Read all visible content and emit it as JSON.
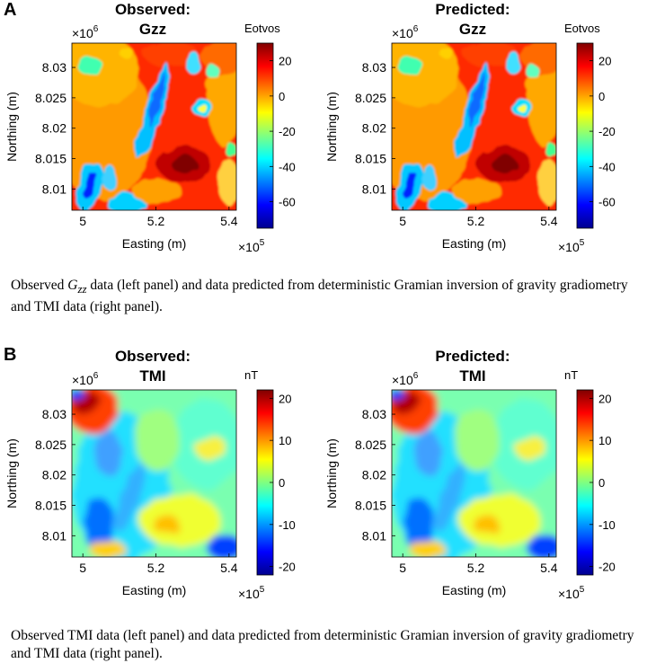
{
  "figure_a": {
    "letter": "A",
    "left_title": [
      "Observed:",
      "Gzz"
    ],
    "right_title": [
      "Predicted:",
      "Gzz"
    ],
    "colorbar_label": "Eotvos",
    "colorbar_ticks": [
      "20",
      "0",
      "-20",
      "-40",
      "-60"
    ],
    "caption_pre": "Observed ",
    "caption_symbol": "G",
    "caption_sub": "zz",
    "caption_post": " data (left panel) and data predicted from deterministic Gramian inversion of gravity gradiometry and TMI data (right panel)."
  },
  "figure_b": {
    "letter": "B",
    "left_title": [
      "Observed:",
      "TMI"
    ],
    "right_title": [
      "Predicted:",
      "TMI"
    ],
    "colorbar_label": "nT",
    "colorbar_ticks": [
      "20",
      "10",
      "0",
      "-10",
      "-20"
    ],
    "caption": "Observed TMI data (left panel) and data predicted from deterministic Gramian inversion of gravity gradiometry and TMI data (right panel)."
  },
  "axes": {
    "xlabel": "Easting (m)",
    "ylabel": "Northing (m)",
    "x_ticks": [
      "5",
      "5.2",
      "5.4"
    ],
    "y_ticks": [
      "8.03",
      "8.025",
      "8.02",
      "8.015",
      "8.01"
    ],
    "x_mult_base": "×10",
    "x_mult_exp": "5",
    "y_mult_base": "×10",
    "y_mult_exp": "6"
  },
  "chart_data": [
    {
      "type": "heatmap",
      "panel": "A-left",
      "title": "Observed: Gzz",
      "xlabel": "Easting (m)",
      "ylabel": "Northing (m)",
      "x_range": [
        497000,
        542000
      ],
      "y_range": [
        8006500,
        8034000
      ],
      "colorbar_label": "Eotvos",
      "clim": [
        -75,
        30
      ]
    },
    {
      "type": "heatmap",
      "panel": "A-right",
      "title": "Predicted: Gzz",
      "xlabel": "Easting (m)",
      "ylabel": "Northing (m)",
      "x_range": [
        497000,
        542000
      ],
      "y_range": [
        8006500,
        8034000
      ],
      "colorbar_label": "Eotvos",
      "clim": [
        -75,
        30
      ]
    },
    {
      "type": "heatmap",
      "panel": "B-left",
      "title": "Observed: TMI",
      "xlabel": "Easting (m)",
      "ylabel": "Northing (m)",
      "x_range": [
        497000,
        542000
      ],
      "y_range": [
        8006500,
        8034000
      ],
      "colorbar_label": "nT",
      "clim": [
        -22,
        22
      ]
    },
    {
      "type": "heatmap",
      "panel": "B-right",
      "title": "Predicted: TMI",
      "xlabel": "Easting (m)",
      "ylabel": "Northing (m)",
      "x_range": [
        497000,
        542000
      ],
      "y_range": [
        8006500,
        8034000
      ],
      "colorbar_label": "nT",
      "clim": [
        -22,
        22
      ]
    }
  ]
}
